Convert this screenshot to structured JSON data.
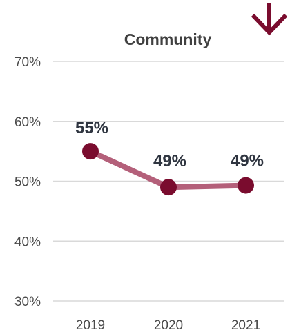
{
  "chart_data": {
    "type": "line",
    "title": "Community",
    "xlabel": "",
    "ylabel": "",
    "categories": [
      "2019",
      "2020",
      "2021"
    ],
    "series": [
      {
        "values": [
          55,
          49,
          49.3
        ],
        "value_labels": [
          "55%",
          "49%",
          "49%"
        ]
      }
    ],
    "ylim": [
      30,
      70
    ],
    "yticks": [
      30,
      40,
      50,
      60,
      70
    ],
    "ytick_labels": [
      "30%",
      "40%",
      "50%",
      "60%",
      "70%"
    ],
    "grid": true,
    "legend": "none",
    "trend_indicator": "down-arrow-icon",
    "colors": {
      "line": "#b4607a",
      "marker": "#7a0c2e",
      "arrow": "#7a0c2e",
      "grid": "#d9d9d9",
      "tick_text": "#4a4a4a",
      "title_text": "#404040",
      "label_text": "#2f3540"
    }
  }
}
